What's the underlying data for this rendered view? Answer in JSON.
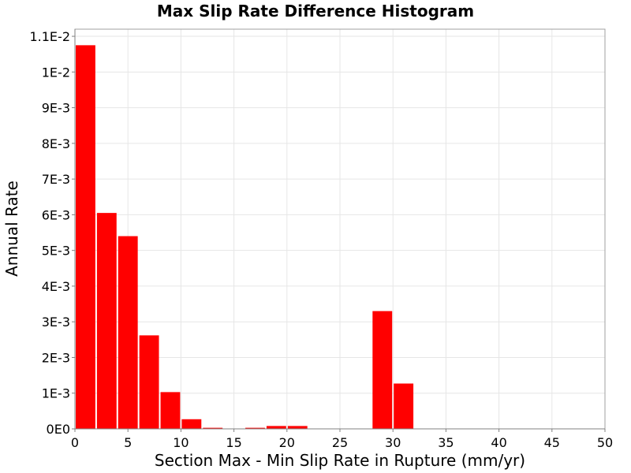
{
  "chart_data": {
    "type": "bar",
    "title": "Max Slip Rate Difference Histogram",
    "xlabel": "Section Max - Min Slip Rate in Rupture (mm/yr)",
    "ylabel": "Annual Rate",
    "xlim": [
      0,
      50
    ],
    "ylim": [
      0,
      0.0112
    ],
    "grid": true,
    "bar_width": 2,
    "bar_color": "#ff0000",
    "x_ticks": [
      {
        "value": 0,
        "label": "0"
      },
      {
        "value": 5,
        "label": "5"
      },
      {
        "value": 10,
        "label": "10"
      },
      {
        "value": 15,
        "label": "15"
      },
      {
        "value": 20,
        "label": "20"
      },
      {
        "value": 25,
        "label": "25"
      },
      {
        "value": 30,
        "label": "30"
      },
      {
        "value": 35,
        "label": "35"
      },
      {
        "value": 40,
        "label": "40"
      },
      {
        "value": 45,
        "label": "45"
      },
      {
        "value": 50,
        "label": "50"
      }
    ],
    "y_ticks": [
      {
        "value": 0,
        "label": "0E0"
      },
      {
        "value": 0.001,
        "label": "1E-3"
      },
      {
        "value": 0.002,
        "label": "2E-3"
      },
      {
        "value": 0.003,
        "label": "3E-3"
      },
      {
        "value": 0.004,
        "label": "4E-3"
      },
      {
        "value": 0.005,
        "label": "5E-3"
      },
      {
        "value": 0.006,
        "label": "6E-3"
      },
      {
        "value": 0.007,
        "label": "7E-3"
      },
      {
        "value": 0.008,
        "label": "8E-3"
      },
      {
        "value": 0.009,
        "label": "9E-3"
      },
      {
        "value": 0.01,
        "label": "1E-2"
      },
      {
        "value": 0.011,
        "label": "1.1E-2"
      }
    ],
    "x": [
      1,
      3,
      5,
      7,
      9,
      11,
      13,
      15,
      17,
      19,
      21,
      23,
      25,
      27,
      29,
      31
    ],
    "values": [
      0.01075,
      0.00605,
      0.0054,
      0.00262,
      0.00103,
      0.00027,
      3e-05,
      1e-05,
      3e-05,
      8e-05,
      8e-05,
      0.0,
      0.0,
      0.0,
      0.0033,
      0.00127
    ]
  }
}
